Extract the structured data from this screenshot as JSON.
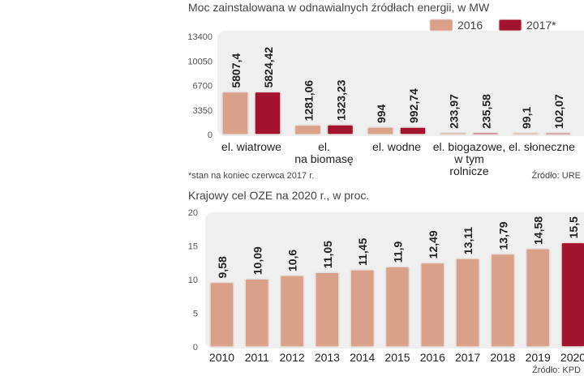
{
  "chart_data": [
    {
      "type": "bar",
      "title": "Moc zainstalowana w odnawialnych źródłach energii, w MW",
      "categories": [
        [
          "el. wiatrowe"
        ],
        [
          "el.",
          "na biomasę"
        ],
        [
          "el. wodne"
        ],
        [
          "el. biogazowe,",
          "w tym",
          "rolnicze"
        ],
        [
          "el. słoneczne"
        ]
      ],
      "series": [
        {
          "name": "2016",
          "values": [
            5807.4,
            1281.06,
            994,
            233.97,
            99.1
          ],
          "labels": [
            "5807,4",
            "1281,06",
            "994",
            "233,97",
            "99,1"
          ],
          "color": "#d9a08a"
        },
        {
          "name": "2017*",
          "values": [
            5824.42,
            1323.23,
            992.74,
            235.58,
            102.07
          ],
          "labels": [
            "5824,42",
            "1323,23",
            "992,74",
            "235,58",
            "102,07"
          ],
          "color": "#a3122e"
        }
      ],
      "yticks": [
        "0",
        "3350",
        "6700",
        "10050",
        "13400"
      ],
      "ylim": [
        0,
        13400
      ],
      "legend": "top-right",
      "footnote": "*stan na koniec czerwca 2017 r.",
      "source": "Źródło: URE"
    },
    {
      "type": "bar",
      "title": "Krajowy cel OZE na 2020 r., w proc.",
      "categories": [
        "2010",
        "2011",
        "2012",
        "2013",
        "2014",
        "2015",
        "2016",
        "2017",
        "2018",
        "2019",
        "2020"
      ],
      "values": [
        9.58,
        10.09,
        10.6,
        11.05,
        11.45,
        11.9,
        12.49,
        13.11,
        13.79,
        14.58,
        15.5
      ],
      "labels": [
        "9,58",
        "10,09",
        "10,6",
        "11,05",
        "11,45",
        "11,9",
        "12,49",
        "13,11",
        "13,79",
        "14,58",
        "15,5"
      ],
      "yticks": [
        "0",
        "5",
        "10",
        "15",
        "20"
      ],
      "ylim": [
        0,
        20
      ],
      "colors": {
        "default": "#d9a08a",
        "highlight": "#a3122e"
      },
      "source": "Źródło: KPD"
    }
  ]
}
